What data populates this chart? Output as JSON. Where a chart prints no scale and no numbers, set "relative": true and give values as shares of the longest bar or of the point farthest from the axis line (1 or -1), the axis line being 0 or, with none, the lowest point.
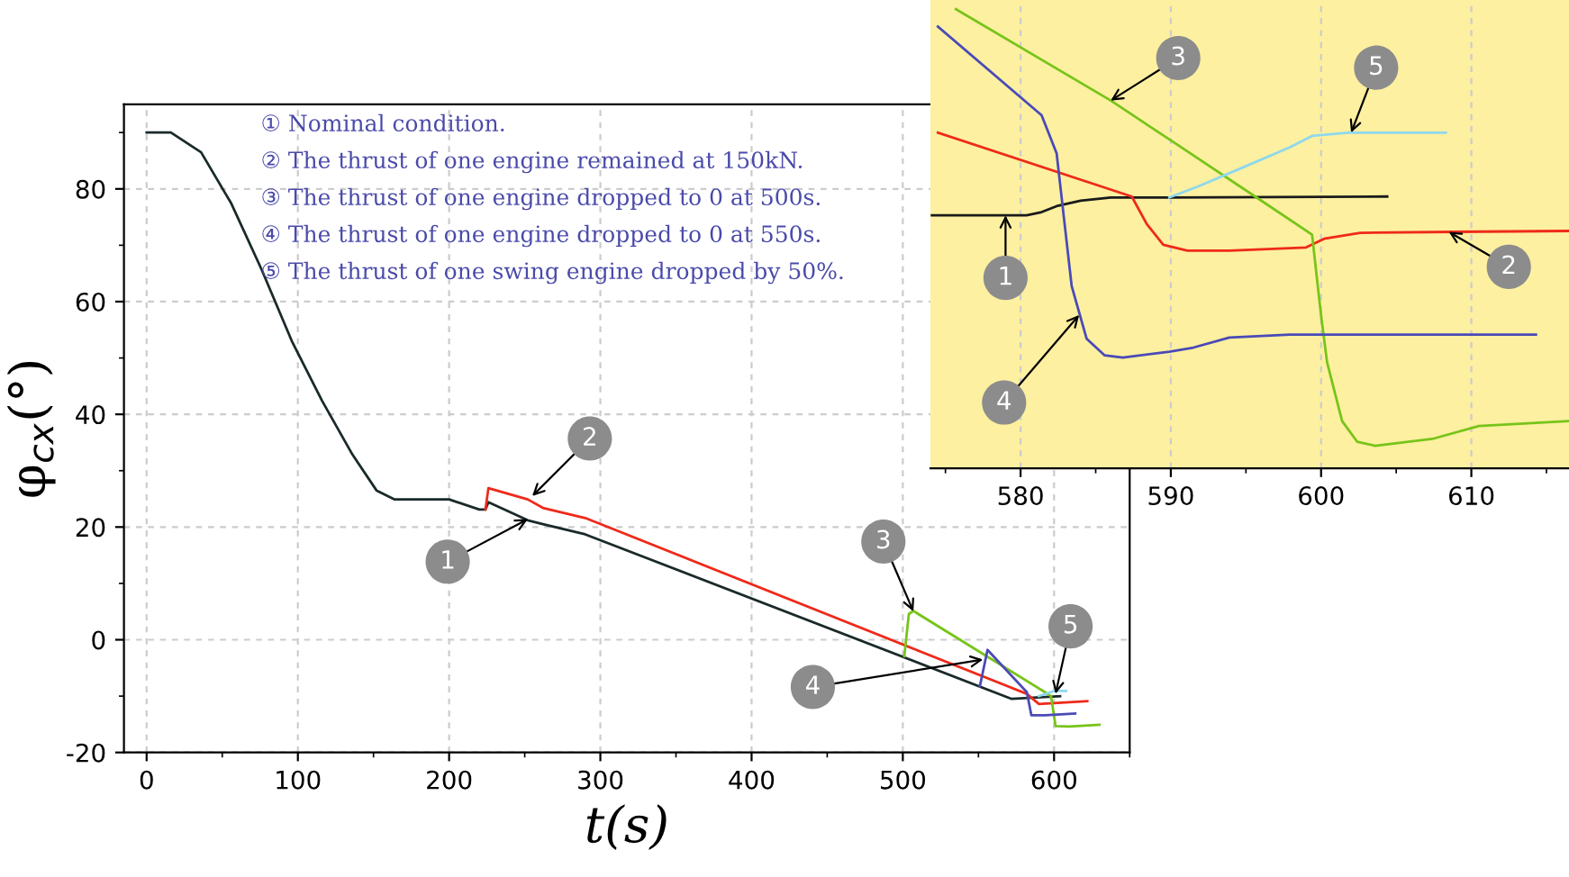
{
  "chart_data": [
    {
      "type": "line",
      "xlabel": "t(s)",
      "ylabel": "φ$_{cx}$(°)",
      "xlim": [
        -15,
        650
      ],
      "ylim": [
        -20,
        95
      ],
      "xticks": [
        0,
        100,
        200,
        300,
        400,
        500,
        600
      ],
      "yticks": [
        -20,
        0,
        20,
        40,
        60,
        80
      ],
      "grid": true,
      "line_style": "solid",
      "series": [
        {
          "color": "#1a2a2a",
          "x": [
            0,
            16,
            36,
            56,
            76,
            96,
            116,
            136,
            152,
            164,
            200,
            220,
            224,
            226,
            252,
            262,
            290,
            572,
            604
          ],
          "values": [
            90,
            90,
            86.5,
            77.4,
            65.7,
            53,
            42.4,
            32.9,
            26.5,
            24.9,
            24.9,
            23.1,
            23.1,
            24.4,
            21.2,
            20.5,
            18.7,
            -10.5,
            -10
          ]
        },
        {
          "color": "#ee2a1a",
          "x": [
            224,
            226,
            252,
            262,
            290,
            582,
            590,
            622
          ],
          "values": [
            23.1,
            26.9,
            24.9,
            23.4,
            21.6,
            -9.6,
            -11.4,
            -10.9
          ]
        },
        {
          "color": "#77c41a",
          "x": [
            501,
            504,
            507,
            594,
            598,
            601,
            610,
            630
          ],
          "values": [
            -2.9,
            4.6,
            5.1,
            -9.3,
            -10,
            -15.3,
            -15.4,
            -15.1
          ]
        },
        {
          "color": "#4a4ab8",
          "x": [
            551,
            556,
            582,
            585,
            594,
            614
          ],
          "values": [
            -8.2,
            -1.8,
            -9.3,
            -13.4,
            -13.4,
            -13.1
          ]
        },
        {
          "color": "#8ed8ee",
          "x": [
            590,
            600,
            608
          ],
          "values": [
            -10,
            -9.1,
            -9.1
          ]
        }
      ],
      "annotations": [
        "① Nominal condition.",
        "② The thrust of one engine remained at 150kN.",
        "③ The thrust of one engine dropped to 0 at 500s.",
        "④ The thrust of one engine dropped to 0 at 550s.",
        "⑤ The thrust of one swing engine dropped by 50%.",
        {
          "text": "1",
          "x": 252,
          "y": 21.4
        },
        {
          "text": "2",
          "x": 255,
          "y": 25.5
        },
        {
          "text": "3",
          "x": 507,
          "y": 5
        },
        {
          "text": "4",
          "x": 553,
          "y": -3.5
        },
        {
          "text": "5",
          "x": 601,
          "y": -9.6
        }
      ]
    },
    {
      "type": "line",
      "relative": true,
      "xlim": [
        574,
        616.5
      ],
      "xticks": [
        580,
        590,
        600,
        610
      ],
      "tick_labels": "x",
      "grid": "x",
      "line_style": "solid",
      "series": [
        {
          "color": "#1a1a1a",
          "x": [
            574.1,
            580.4,
            581.4,
            582.4,
            584.0,
            586.0,
            589.9,
            604.4
          ],
          "values": [
            0.551,
            0.551,
            0.558,
            0.571,
            0.583,
            0.59,
            0.59,
            0.592
          ]
        },
        {
          "color": "#ee2a1a",
          "x": [
            574.5,
            587.4,
            588.4,
            589.5,
            591.1,
            593.9,
            599.0,
            600.2,
            602.6,
            608.9,
            616.5
          ],
          "values": [
            0.731,
            0.592,
            0.532,
            0.487,
            0.474,
            0.474,
            0.481,
            0.5,
            0.513,
            0.515,
            0.517
          ]
        },
        {
          "color": "#77c41a",
          "x": [
            575.7,
            586.0,
            590.7,
            595.7,
            599.4,
            600.0,
            600.4,
            601.4,
            602.4,
            603.6,
            607.4,
            610.5,
            616.5
          ],
          "values": [
            1,
            0.801,
            0.699,
            0.59,
            0.509,
            0.333,
            0.231,
            0.103,
            0.058,
            0.049,
            0.064,
            0.092,
            0.103
          ]
        },
        {
          "color": "#4a4ab8",
          "x": [
            574.5,
            581.4,
            582.4,
            583.4,
            584.4,
            585.6,
            586.8,
            589.9,
            591.5,
            593.9,
            597.9,
            614.3
          ],
          "values": [
            0.962,
            0.769,
            0.686,
            0.397,
            0.282,
            0.246,
            0.241,
            0.254,
            0.263,
            0.285,
            0.291,
            0.291
          ]
        },
        {
          "color": "#8ed8ee",
          "x": [
            589.9,
            591.9,
            594.7,
            597.9,
            599.4,
            601.8,
            608.3
          ],
          "values": [
            0.59,
            0.615,
            0.654,
            0.699,
            0.724,
            0.731,
            0.731
          ]
        }
      ],
      "annotations": [
        {
          "text": "1",
          "x": 579,
          "y": 0.551
        },
        {
          "text": "2",
          "x": 608.5,
          "y": 0.515
        },
        {
          "text": "3",
          "x": 586,
          "y": 0.801
        },
        {
          "text": "4",
          "x": 583.9,
          "y": 0.334
        },
        {
          "text": "5",
          "x": 602,
          "y": 0.731
        }
      ]
    }
  ]
}
